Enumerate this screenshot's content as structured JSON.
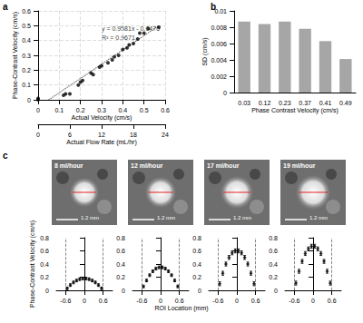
{
  "chart_data": [
    {
      "type": "scatter",
      "panel": "a",
      "xlabel": "Actual Velocity (cm/s)",
      "ylabel": "Phase-Contrast Velocity (cm/s)",
      "xlim": [
        0,
        0.6
      ],
      "xticks": [
        0,
        0.1,
        0.2,
        0.3,
        0.4,
        0.5,
        0.6
      ],
      "ylim": [
        0,
        0.6
      ],
      "yticks": [
        0,
        0.1,
        0.2,
        0.3,
        0.4,
        0.5,
        0.6
      ],
      "x2label": "Actual Flow Rate (mL/hr)",
      "x2lim": [
        0,
        24
      ],
      "x2ticks": [
        0,
        6,
        12,
        18,
        24
      ],
      "grid": true,
      "annotations": [
        "y = 0.9581x - 0.0476",
        "R² = 0.9671"
      ],
      "series": [
        {
          "type": "scatter",
          "marker": "circle",
          "color": "#000000",
          "x": [
            0,
            0,
            0.12,
            0.13,
            0.15,
            0.19,
            0.2,
            0.21,
            0.25,
            0.26,
            0.29,
            0.3,
            0.33,
            0.35,
            0.36,
            0.38,
            0.4,
            0.42,
            0.43,
            0.45,
            0.47,
            0.48,
            0.5,
            0.52,
            0.57
          ],
          "values": [
            0,
            0.01,
            0.03,
            0.04,
            0.04,
            0.1,
            0.12,
            0.13,
            0.18,
            0.17,
            0.22,
            0.23,
            0.25,
            0.27,
            0.29,
            0.3,
            0.34,
            0.35,
            0.37,
            0.38,
            0.41,
            0.45,
            0.45,
            0.48,
            0.49
          ]
        },
        {
          "type": "line",
          "line_style": "dotted",
          "color": "#555555",
          "x": [
            0.05,
            0.57
          ],
          "values": [
            0,
            0.5
          ]
        }
      ]
    },
    {
      "type": "bar",
      "panel": "b",
      "xlabel": "Phase Contrast Velocity (cm/s)",
      "ylabel": "SD (cm/s)",
      "categories": [
        "0.03",
        "0.12",
        "0.23",
        "0.37",
        "0.41",
        "0.49"
      ],
      "values": [
        0.0087,
        0.0084,
        0.0087,
        0.0078,
        0.0063,
        0.0041
      ],
      "color": "#a6a6a6",
      "ylim": [
        0,
        0.01
      ],
      "yticks": [
        0,
        0.002,
        0.004,
        0.006,
        0.008,
        0.01
      ],
      "grid": false
    },
    {
      "type": "scatter",
      "panel": "c",
      "title": "8 ml/hour",
      "annotations": [
        "1.2 mm"
      ],
      "xlabel": "ROI Location (mm)",
      "ylabel": "Phase-Contrast Velocity (cm/s)",
      "marker": "diamond",
      "color": "#000000",
      "grid": false,
      "xlim": [
        -0.9,
        0.9
      ],
      "xticks": [
        -0.6,
        0,
        0.6
      ],
      "ylim": [
        0,
        0.8
      ],
      "yticks": [
        0,
        0.2,
        0.4,
        0.6,
        0.8
      ],
      "reference_lines": [
        -0.6,
        0.6
      ],
      "x": [
        -0.55,
        -0.45,
        -0.35,
        -0.25,
        -0.15,
        -0.05,
        0.05,
        0.15,
        0.25,
        0.35,
        0.45,
        0.55
      ],
      "values": [
        0.03,
        0.08,
        0.12,
        0.15,
        0.17,
        0.18,
        0.18,
        0.17,
        0.15,
        0.12,
        0.08,
        0.03
      ],
      "errors": [
        0.02,
        0.02,
        0.02,
        0.02,
        0.02,
        0.02,
        0.02,
        0.02,
        0.02,
        0.02,
        0.02,
        0.02
      ]
    },
    {
      "type": "scatter",
      "title": "12 ml/hour",
      "annotations": [
        "1.2 mm"
      ],
      "marker": "diamond",
      "color": "#000000",
      "grid": false,
      "xlim": [
        -0.9,
        0.9
      ],
      "xticks": [
        -0.6,
        0,
        0.6
      ],
      "ylim": [
        0,
        0.8
      ],
      "yticks": [
        0,
        0.2,
        0.4,
        0.6,
        0.8
      ],
      "reference_lines": [
        -0.6,
        0.6
      ],
      "x": [
        -0.55,
        -0.45,
        -0.35,
        -0.25,
        -0.15,
        -0.05,
        0.05,
        0.15,
        0.25,
        0.35,
        0.45,
        0.55
      ],
      "values": [
        0.06,
        0.15,
        0.23,
        0.29,
        0.33,
        0.35,
        0.35,
        0.33,
        0.29,
        0.23,
        0.15,
        0.06
      ],
      "errors": [
        0.02,
        0.02,
        0.02,
        0.02,
        0.02,
        0.02,
        0.02,
        0.02,
        0.02,
        0.02,
        0.02,
        0.02
      ]
    },
    {
      "type": "scatter",
      "title": "17 ml/hour",
      "annotations": [
        "1.2 mm"
      ],
      "marker": "diamond",
      "color": "#000000",
      "grid": false,
      "xlim": [
        -0.9,
        0.9
      ],
      "xticks": [
        -0.6,
        0,
        0.6
      ],
      "ylim": [
        0,
        0.8
      ],
      "yticks": [
        0,
        0.2,
        0.4,
        0.6,
        0.8
      ],
      "reference_lines": [
        -0.6,
        0.6
      ],
      "x": [
        -0.55,
        -0.45,
        -0.35,
        -0.25,
        -0.15,
        -0.05,
        0.05,
        0.15,
        0.25,
        0.35,
        0.45,
        0.55
      ],
      "values": [
        0.1,
        0.26,
        0.4,
        0.5,
        0.57,
        0.6,
        0.6,
        0.57,
        0.5,
        0.4,
        0.26,
        0.1
      ],
      "errors": [
        0.03,
        0.03,
        0.03,
        0.03,
        0.03,
        0.03,
        0.03,
        0.03,
        0.03,
        0.03,
        0.03,
        0.03
      ]
    },
    {
      "type": "scatter",
      "title": "19 ml/hour",
      "annotations": [
        "1.2 mm"
      ],
      "marker": "diamond",
      "color": "#000000",
      "grid": false,
      "xlim": [
        -0.9,
        0.9
      ],
      "xticks": [
        -0.6,
        0,
        0.6
      ],
      "ylim": [
        0,
        0.8
      ],
      "yticks": [
        0,
        0.2,
        0.4,
        0.6,
        0.8
      ],
      "reference_lines": [
        -0.6,
        0.6
      ],
      "x": [
        -0.55,
        -0.45,
        -0.35,
        -0.25,
        -0.15,
        -0.05,
        0.05,
        0.15,
        0.25,
        0.35,
        0.45,
        0.55
      ],
      "values": [
        0.11,
        0.29,
        0.44,
        0.56,
        0.63,
        0.67,
        0.67,
        0.63,
        0.56,
        0.44,
        0.29,
        0.11
      ],
      "errors": [
        0.03,
        0.03,
        0.03,
        0.03,
        0.03,
        0.03,
        0.03,
        0.03,
        0.03,
        0.03,
        0.03,
        0.03
      ]
    }
  ]
}
